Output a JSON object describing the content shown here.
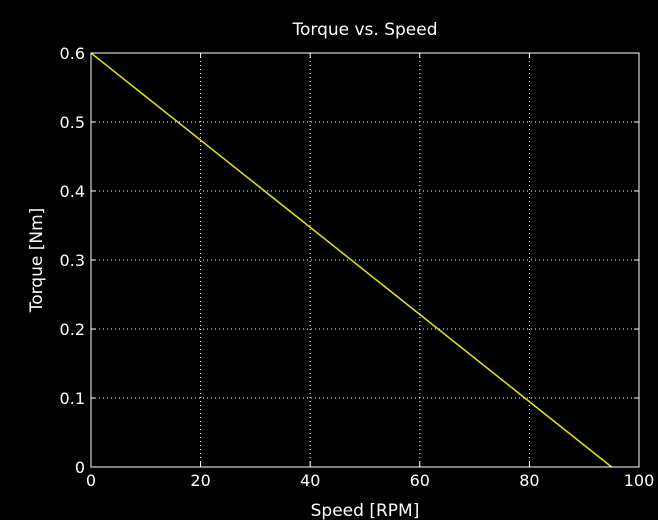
{
  "chart_data": {
    "type": "line",
    "title": "Torque vs. Speed",
    "xlabel": "Speed [RPM]",
    "ylabel": "Torque [Nm]",
    "xlim": [
      0,
      100
    ],
    "ylim": [
      0,
      0.6
    ],
    "xticks": [
      0,
      20,
      40,
      60,
      80,
      100
    ],
    "yticks": [
      0,
      0.1,
      0.2,
      0.3,
      0.4,
      0.5,
      0.6
    ],
    "xtick_labels": [
      "0",
      "20",
      "40",
      "60",
      "80",
      "100"
    ],
    "ytick_labels": [
      "0",
      "0.1",
      "0.2",
      "0.3",
      "0.4",
      "0.5",
      "0.6"
    ],
    "grid": true,
    "series": [
      {
        "x": [
          0,
          95
        ],
        "y": [
          0.6,
          0.0
        ],
        "color": "#e6e600"
      }
    ],
    "background": "#000000",
    "foreground": "#ffffff"
  }
}
